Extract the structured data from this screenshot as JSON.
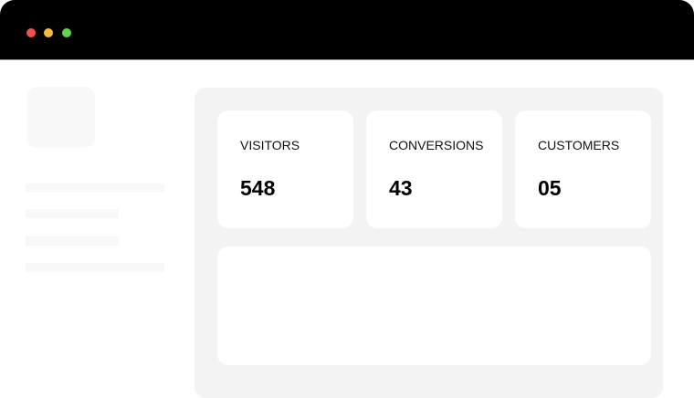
{
  "window": {
    "controls": [
      {
        "name": "close",
        "color": "#f0524b"
      },
      {
        "name": "minimize",
        "color": "#f6bd3b"
      },
      {
        "name": "maximize",
        "color": "#5fd54e"
      }
    ]
  },
  "stats": [
    {
      "label": "VISITORS",
      "value": "548"
    },
    {
      "label": "CONVERSIONS",
      "value": "43"
    },
    {
      "label": "CUSTOMERS",
      "value": "05"
    }
  ]
}
